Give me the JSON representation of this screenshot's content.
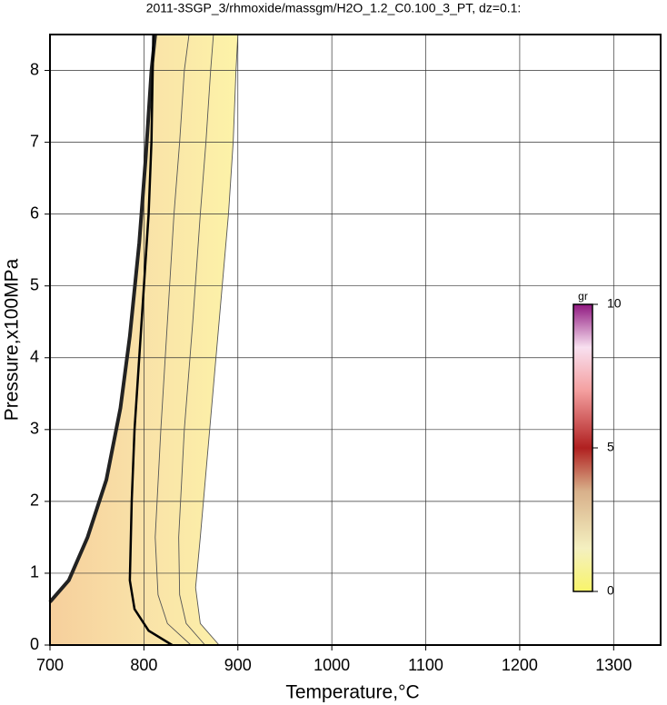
{
  "chart_data": {
    "type": "contour",
    "title": "2011-3SGP_3/rhmoxide/massgm/H2O_1.2_C0.100_3_PT, dz=0.1:",
    "x_label": "Temperature,°C",
    "y_label": "Pressure,x100MPa",
    "xlim": [
      700,
      1350
    ],
    "ylim": [
      0,
      8.5
    ],
    "xticks": [
      700,
      800,
      900,
      1000,
      1100,
      1200,
      1300
    ],
    "yticks": [
      0,
      1,
      2,
      3,
      4,
      5,
      6,
      7,
      8
    ],
    "grid": true,
    "series": [
      {
        "color": "#222222",
        "x": [
          700,
          720,
          740,
          760,
          775,
          785,
          795,
          802,
          808,
          812
        ],
        "values": [
          0.6,
          0.9,
          1.5,
          2.3,
          3.3,
          4.3,
          5.6,
          6.8,
          8.0,
          8.5
        ]
      },
      {
        "color": "#000000",
        "x": [
          830,
          805,
          790,
          785,
          787,
          790,
          795,
          800,
          805,
          808,
          810
        ],
        "values": [
          0,
          0.2,
          0.5,
          0.9,
          2,
          3,
          4,
          5,
          6,
          7,
          8.5
        ]
      },
      {
        "color": "#555555",
        "x": [
          850,
          825,
          815,
          812,
          818,
          825,
          832,
          838,
          843,
          848
        ],
        "values": [
          0,
          0.3,
          0.7,
          1.5,
          3,
          4.5,
          6,
          7,
          8,
          8.5
        ]
      },
      {
        "color": "#555555",
        "x": [
          865,
          845,
          838,
          837,
          843,
          852,
          860,
          866,
          871,
          874
        ],
        "values": [
          0,
          0.3,
          0.7,
          1.5,
          3,
          4.5,
          6,
          7,
          8,
          8.5
        ]
      },
      {
        "color": "#555555",
        "x": [
          880,
          860,
          855,
          860,
          870,
          880,
          890,
          895,
          898,
          900
        ],
        "values": [
          0,
          0.3,
          0.8,
          1.5,
          3,
          4.5,
          6,
          7,
          8,
          8.5
        ]
      }
    ],
    "colorbar": {
      "label": "gr",
      "lim": [
        0,
        10
      ],
      "ticks": [
        0,
        5,
        10
      ]
    }
  }
}
